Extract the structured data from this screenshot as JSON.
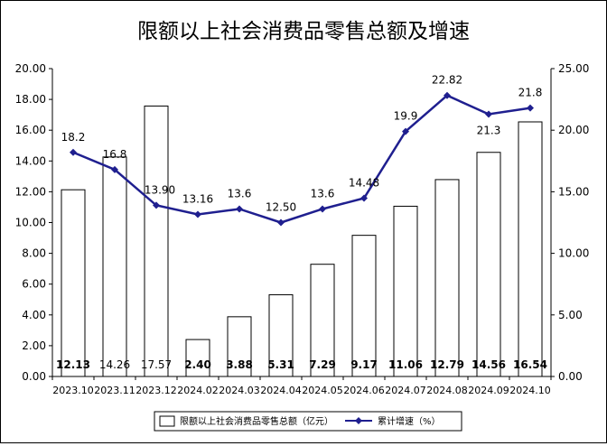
{
  "chart_data": {
    "type": "bar+line",
    "title": "限额以上社会消费品零售总额及增速",
    "categories": [
      "2023.10",
      "2023.11",
      "2023.12",
      "2024.02",
      "2024.03",
      "2024.04",
      "2024.05",
      "2024.06",
      "2024.07",
      "2024.08",
      "2024.09",
      "2024.10"
    ],
    "series": [
      {
        "name": "限额以上社会消费品零售总额（亿元）",
        "type": "bar",
        "axis": "left",
        "values": [
          12.13,
          14.26,
          17.57,
          2.4,
          3.88,
          5.31,
          7.29,
          9.17,
          11.06,
          12.79,
          14.56,
          16.54
        ],
        "labels": [
          "12.13",
          "14.26",
          "17.57",
          "2.40",
          "3.88",
          "5.31",
          "7.29",
          "9.17",
          "11.06",
          "12.79",
          "14.56",
          "16.54"
        ],
        "bold_labels": [
          true,
          false,
          false,
          true,
          true,
          true,
          true,
          true,
          true,
          true,
          true,
          true
        ],
        "color": "#ffffff"
      },
      {
        "name": "累计增速（%）",
        "type": "line",
        "axis": "right",
        "values": [
          18.2,
          16.8,
          13.9,
          13.16,
          13.6,
          12.5,
          13.6,
          14.48,
          19.9,
          22.82,
          21.3,
          21.8
        ],
        "labels": [
          "18.2",
          "16.8",
          "13.90",
          "13.16",
          "13.6",
          "12.50",
          "13.6",
          "14.48",
          "19.9",
          "22.82",
          "21.3",
          "21.8"
        ],
        "color": "#1f1f8f"
      }
    ],
    "left_axis": {
      "min": 0,
      "max": 20,
      "step": 2,
      "tick_labels": [
        "0.00",
        "2.00",
        "4.00",
        "6.00",
        "8.00",
        "10.00",
        "12.00",
        "14.00",
        "16.00",
        "18.00",
        "20.00"
      ]
    },
    "right_axis": {
      "min": 0,
      "max": 25,
      "step": 5,
      "tick_labels": [
        "0.00",
        "5.00",
        "10.00",
        "15.00",
        "20.00",
        "25.00"
      ]
    },
    "legend_position": "bottom",
    "grid": false
  }
}
